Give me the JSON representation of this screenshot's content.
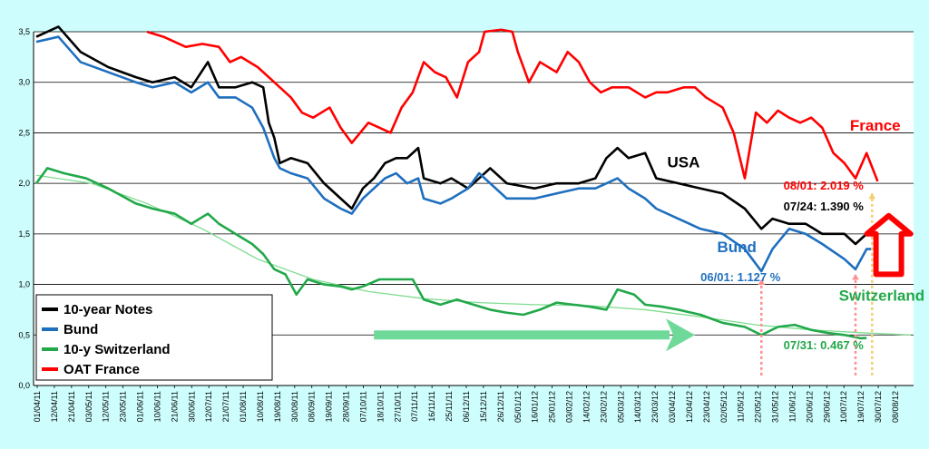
{
  "chart_data": {
    "type": "line",
    "ylim": [
      0,
      3.5
    ],
    "y_ticks": [
      "0,0",
      "0,5",
      "1,0",
      "1,5",
      "2,0",
      "2,5",
      "3,0",
      "3,5"
    ],
    "x_ticks": [
      "01/04/11",
      "12/04/11",
      "21/04/11",
      "03/05/11",
      "12/05/11",
      "23/05/11",
      "01/06/11",
      "10/06/11",
      "21/06/11",
      "30/06/11",
      "12/07/11",
      "21/07/11",
      "01/08/11",
      "10/08/11",
      "19/08/11",
      "30/08/11",
      "08/09/11",
      "19/09/11",
      "28/09/11",
      "07/10/11",
      "18/10/11",
      "27/10/11",
      "07/11/11",
      "16/11/11",
      "25/11/11",
      "06/12/11",
      "15/12/11",
      "26/12/11",
      "05/01/12",
      "16/01/12",
      "25/01/12",
      "03/02/12",
      "14/02/12",
      "23/02/12",
      "05/03/12",
      "14/03/12",
      "23/03/12",
      "03/04/12",
      "12/04/12",
      "23/04/12",
      "02/05/12",
      "11/05/12",
      "22/05/12",
      "31/05/12",
      "11/06/12",
      "20/06/12",
      "29/06/12",
      "10/07/12",
      "19/07/12",
      "30/07/12",
      "08/08/12"
    ],
    "grid": true,
    "legend_placement": "bottom-left",
    "series": [
      {
        "name": "10-year Notes",
        "color": "#000000",
        "points": [
          [
            0,
            3.45
          ],
          [
            4,
            3.55
          ],
          [
            8,
            3.3
          ],
          [
            13,
            3.15
          ],
          [
            18,
            3.05
          ],
          [
            21,
            3.0
          ],
          [
            25,
            3.05
          ],
          [
            28,
            2.95
          ],
          [
            31,
            3.2
          ],
          [
            33,
            2.95
          ],
          [
            36,
            2.95
          ],
          [
            39,
            3.0
          ],
          [
            41,
            2.95
          ],
          [
            42,
            2.6
          ],
          [
            43,
            2.45
          ],
          [
            44,
            2.2
          ],
          [
            46,
            2.25
          ],
          [
            49,
            2.2
          ],
          [
            52,
            2.0
          ],
          [
            55,
            1.85
          ],
          [
            57,
            1.75
          ],
          [
            59,
            1.95
          ],
          [
            61,
            2.05
          ],
          [
            63,
            2.2
          ],
          [
            65,
            2.25
          ],
          [
            67,
            2.25
          ],
          [
            69,
            2.35
          ],
          [
            70,
            2.05
          ],
          [
            73,
            2.0
          ],
          [
            75,
            2.05
          ],
          [
            78,
            1.95
          ],
          [
            80,
            2.05
          ],
          [
            82,
            2.15
          ],
          [
            85,
            2.0
          ],
          [
            90,
            1.95
          ],
          [
            94,
            2.0
          ],
          [
            98,
            2.0
          ],
          [
            101,
            2.05
          ],
          [
            103,
            2.25
          ],
          [
            105,
            2.35
          ],
          [
            107,
            2.25
          ],
          [
            110,
            2.3
          ],
          [
            112,
            2.05
          ],
          [
            116,
            2.0
          ],
          [
            120,
            1.95
          ],
          [
            124,
            1.9
          ],
          [
            128,
            1.75
          ],
          [
            131,
            1.55
          ],
          [
            133,
            1.65
          ],
          [
            136,
            1.6
          ],
          [
            139,
            1.6
          ],
          [
            142,
            1.5
          ],
          [
            146,
            1.5
          ],
          [
            148,
            1.4
          ],
          [
            150,
            1.5
          ],
          [
            151,
            1.5
          ]
        ]
      },
      {
        "name": "Bund",
        "color": "#1f6fbf",
        "points": [
          [
            0,
            3.4
          ],
          [
            4,
            3.45
          ],
          [
            8,
            3.2
          ],
          [
            13,
            3.1
          ],
          [
            18,
            3.0
          ],
          [
            21,
            2.95
          ],
          [
            25,
            3.0
          ],
          [
            28,
            2.9
          ],
          [
            31,
            3.0
          ],
          [
            33,
            2.85
          ],
          [
            36,
            2.85
          ],
          [
            39,
            2.75
          ],
          [
            41,
            2.55
          ],
          [
            42,
            2.4
          ],
          [
            43,
            2.25
          ],
          [
            44,
            2.15
          ],
          [
            46,
            2.1
          ],
          [
            49,
            2.05
          ],
          [
            52,
            1.85
          ],
          [
            55,
            1.75
          ],
          [
            57,
            1.7
          ],
          [
            59,
            1.85
          ],
          [
            61,
            1.95
          ],
          [
            63,
            2.05
          ],
          [
            65,
            2.1
          ],
          [
            67,
            2.0
          ],
          [
            69,
            2.05
          ],
          [
            70,
            1.85
          ],
          [
            73,
            1.8
          ],
          [
            75,
            1.85
          ],
          [
            78,
            1.95
          ],
          [
            80,
            2.1
          ],
          [
            82,
            2.0
          ],
          [
            85,
            1.85
          ],
          [
            90,
            1.85
          ],
          [
            94,
            1.9
          ],
          [
            98,
            1.95
          ],
          [
            101,
            1.95
          ],
          [
            103,
            2.0
          ],
          [
            105,
            2.05
          ],
          [
            107,
            1.95
          ],
          [
            110,
            1.85
          ],
          [
            112,
            1.75
          ],
          [
            116,
            1.65
          ],
          [
            120,
            1.55
          ],
          [
            124,
            1.5
          ],
          [
            128,
            1.35
          ],
          [
            131,
            1.13
          ],
          [
            133,
            1.35
          ],
          [
            136,
            1.55
          ],
          [
            139,
            1.5
          ],
          [
            142,
            1.4
          ],
          [
            146,
            1.25
          ],
          [
            148,
            1.15
          ],
          [
            150,
            1.35
          ],
          [
            151,
            1.35
          ]
        ]
      },
      {
        "name": "10-y Switzerland",
        "color": "#22a84a",
        "points": [
          [
            0,
            2.0
          ],
          [
            2,
            2.15
          ],
          [
            5,
            2.1
          ],
          [
            9,
            2.05
          ],
          [
            13,
            1.95
          ],
          [
            18,
            1.8
          ],
          [
            21,
            1.75
          ],
          [
            25,
            1.7
          ],
          [
            28,
            1.6
          ],
          [
            31,
            1.7
          ],
          [
            33,
            1.6
          ],
          [
            36,
            1.5
          ],
          [
            39,
            1.4
          ],
          [
            41,
            1.3
          ],
          [
            43,
            1.15
          ],
          [
            45,
            1.1
          ],
          [
            47,
            0.9
          ],
          [
            49,
            1.05
          ],
          [
            52,
            1.0
          ],
          [
            55,
            0.98
          ],
          [
            57,
            0.95
          ],
          [
            59,
            0.98
          ],
          [
            62,
            1.05
          ],
          [
            65,
            1.05
          ],
          [
            68,
            1.05
          ],
          [
            70,
            0.85
          ],
          [
            73,
            0.8
          ],
          [
            76,
            0.85
          ],
          [
            79,
            0.8
          ],
          [
            82,
            0.75
          ],
          [
            85,
            0.72
          ],
          [
            88,
            0.7
          ],
          [
            91,
            0.75
          ],
          [
            94,
            0.82
          ],
          [
            97,
            0.8
          ],
          [
            100,
            0.78
          ],
          [
            103,
            0.75
          ],
          [
            105,
            0.95
          ],
          [
            108,
            0.9
          ],
          [
            110,
            0.8
          ],
          [
            113,
            0.78
          ],
          [
            116,
            0.75
          ],
          [
            120,
            0.7
          ],
          [
            124,
            0.62
          ],
          [
            128,
            0.58
          ],
          [
            131,
            0.5
          ],
          [
            134,
            0.58
          ],
          [
            137,
            0.6
          ],
          [
            140,
            0.55
          ],
          [
            143,
            0.52
          ],
          [
            146,
            0.5
          ],
          [
            149,
            0.467
          ],
          [
            150,
            0.47
          ]
        ]
      },
      {
        "name": "OAT France",
        "color": "#ff0000",
        "points": [
          [
            20,
            3.5
          ],
          [
            23,
            3.45
          ],
          [
            27,
            3.35
          ],
          [
            30,
            3.38
          ],
          [
            33,
            3.35
          ],
          [
            35,
            3.2
          ],
          [
            37,
            3.25
          ],
          [
            40,
            3.15
          ],
          [
            43,
            3.0
          ],
          [
            46,
            2.85
          ],
          [
            48,
            2.7
          ],
          [
            50,
            2.65
          ],
          [
            53,
            2.75
          ],
          [
            55,
            2.55
          ],
          [
            57,
            2.4
          ],
          [
            60,
            2.6
          ],
          [
            62,
            2.55
          ],
          [
            64,
            2.5
          ],
          [
            66,
            2.75
          ],
          [
            68,
            2.9
          ],
          [
            70,
            3.2
          ],
          [
            72,
            3.1
          ],
          [
            74,
            3.05
          ],
          [
            76,
            2.85
          ],
          [
            78,
            3.2
          ],
          [
            80,
            3.3
          ],
          [
            81,
            3.5
          ],
          [
            84,
            3.52
          ],
          [
            86,
            3.5
          ],
          [
            87,
            3.3
          ],
          [
            89,
            3.0
          ],
          [
            91,
            3.2
          ],
          [
            94,
            3.1
          ],
          [
            96,
            3.3
          ],
          [
            98,
            3.2
          ],
          [
            100,
            3.0
          ],
          [
            102,
            2.9
          ],
          [
            104,
            2.95
          ],
          [
            107,
            2.95
          ],
          [
            110,
            2.85
          ],
          [
            112,
            2.9
          ],
          [
            114,
            2.9
          ],
          [
            117,
            2.95
          ],
          [
            119,
            2.95
          ],
          [
            121,
            2.85
          ],
          [
            124,
            2.75
          ],
          [
            126,
            2.5
          ],
          [
            128,
            2.05
          ],
          [
            130,
            2.7
          ],
          [
            132,
            2.6
          ],
          [
            134,
            2.72
          ],
          [
            136,
            2.65
          ],
          [
            138,
            2.6
          ],
          [
            140,
            2.65
          ],
          [
            142,
            2.55
          ],
          [
            144,
            2.3
          ],
          [
            146,
            2.2
          ],
          [
            148,
            2.05
          ],
          [
            150,
            2.3
          ],
          [
            152,
            2.02
          ]
        ]
      }
    ],
    "smooth_trend": {
      "color": "#7fdc8f",
      "points": [
        [
          0,
          2.08
        ],
        [
          10,
          2.0
        ],
        [
          20,
          1.8
        ],
        [
          30,
          1.55
        ],
        [
          40,
          1.25
        ],
        [
          50,
          1.05
        ],
        [
          60,
          0.93
        ],
        [
          70,
          0.86
        ],
        [
          80,
          0.82
        ],
        [
          90,
          0.8
        ],
        [
          100,
          0.79
        ],
        [
          110,
          0.75
        ],
        [
          120,
          0.68
        ],
        [
          130,
          0.6
        ],
        [
          140,
          0.55
        ],
        [
          150,
          0.52
        ],
        [
          158,
          0.5
        ]
      ]
    },
    "annotations": [
      {
        "text": "USA",
        "color": "#000000",
        "x": 114,
        "y": 2.16,
        "size": 17
      },
      {
        "text": "France",
        "color": "#ff0000",
        "x": 147,
        "y": 2.52,
        "size": 17
      },
      {
        "text": "Bund",
        "color": "#1f6fbf",
        "x": 123,
        "y": 1.32,
        "size": 17
      },
      {
        "text": "Switzerland",
        "color": "#22a84a",
        "x": 145,
        "y": 0.84,
        "size": 17
      },
      {
        "text": "08/01: 2.019 %",
        "color": "#ff0000",
        "x": 135,
        "y": 1.94,
        "size": 13
      },
      {
        "text": "07/24: 1.390 %",
        "color": "#000000",
        "x": 135,
        "y": 1.73,
        "size": 13
      },
      {
        "text": "06/01: 1.127 %",
        "color": "#1f6fbf",
        "x": 120,
        "y": 1.03,
        "size": 13
      },
      {
        "text": "07/31: 0.467 %",
        "color": "#22a84a",
        "x": 135,
        "y": 0.36,
        "size": 13
      }
    ],
    "green_arrow": {
      "color": "#6ed998",
      "x_from": 61,
      "x_to": 119,
      "y": 0.5
    },
    "red_up_arrow": {
      "color": "#ff0000",
      "x": 154,
      "y_from": 1.1,
      "y_to": 1.68
    },
    "dashed_markers": [
      {
        "color": "#ff8f8f",
        "x": 131,
        "y_from": 0.1,
        "y_to": 1.05
      },
      {
        "color": "#ff8f8f",
        "x": 148,
        "y_from": 0.1,
        "y_to": 1.1
      },
      {
        "color": "#f0d070",
        "x": 151,
        "y_from": 0.1,
        "y_to": 1.9
      }
    ]
  },
  "legend": {
    "items": [
      {
        "label": "10-year Notes",
        "color": "#000000"
      },
      {
        "label": "Bund",
        "color": "#1f6fbf"
      },
      {
        "label": "10-y Switzerland",
        "color": "#22a84a"
      },
      {
        "label": "OAT France",
        "color": "#ff0000"
      }
    ]
  },
  "colors": {
    "background": "#cdfdfd",
    "plot_background": "#ffffff",
    "gridline": "#000000"
  }
}
